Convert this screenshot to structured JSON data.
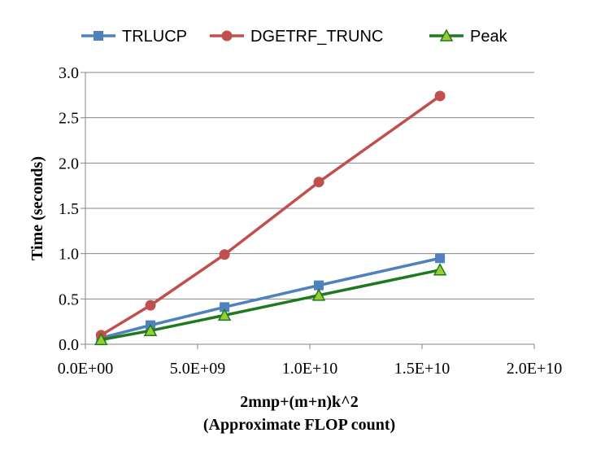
{
  "chart_data": {
    "type": "line",
    "title": "",
    "xlabel": [
      "2mnp+(m+n)k^2",
      "(Approximate FLOP count)"
    ],
    "ylabel": "Time (seconds)",
    "xlim": [
      0,
      20000000000
    ],
    "ylim": [
      0,
      3.0
    ],
    "xticks": [
      0,
      5000000000,
      10000000000,
      15000000000,
      20000000000
    ],
    "xtick_labels": [
      "0.0E+00",
      "5.0E+09",
      "1.0E+10",
      "1.5E+10",
      "2.0E+10"
    ],
    "yticks": [
      0,
      0.5,
      1.0,
      1.5,
      2.0,
      2.5,
      3.0
    ],
    "ytick_labels": [
      "0.0",
      "0.5",
      "1.0",
      "1.5",
      "2.0",
      "2.5",
      "3.0"
    ],
    "grid": "horizontal",
    "legend_position": "top",
    "x": [
      700000000,
      2900000000,
      6200000000,
      10400000000,
      15800000000
    ],
    "series": [
      {
        "name": "TRLUCP",
        "values": [
          0.07,
          0.21,
          0.41,
          0.65,
          0.95
        ],
        "color": "#4f81bd",
        "marker": "square"
      },
      {
        "name": "DGETRF_TRUNC",
        "values": [
          0.1,
          0.43,
          0.99,
          1.79,
          2.74
        ],
        "color": "#c0504d",
        "marker": "circle"
      },
      {
        "name": "Peak",
        "values": [
          0.05,
          0.15,
          0.32,
          0.54,
          0.82
        ],
        "color": "#1f7a1f",
        "marker": "triangle"
      }
    ]
  }
}
